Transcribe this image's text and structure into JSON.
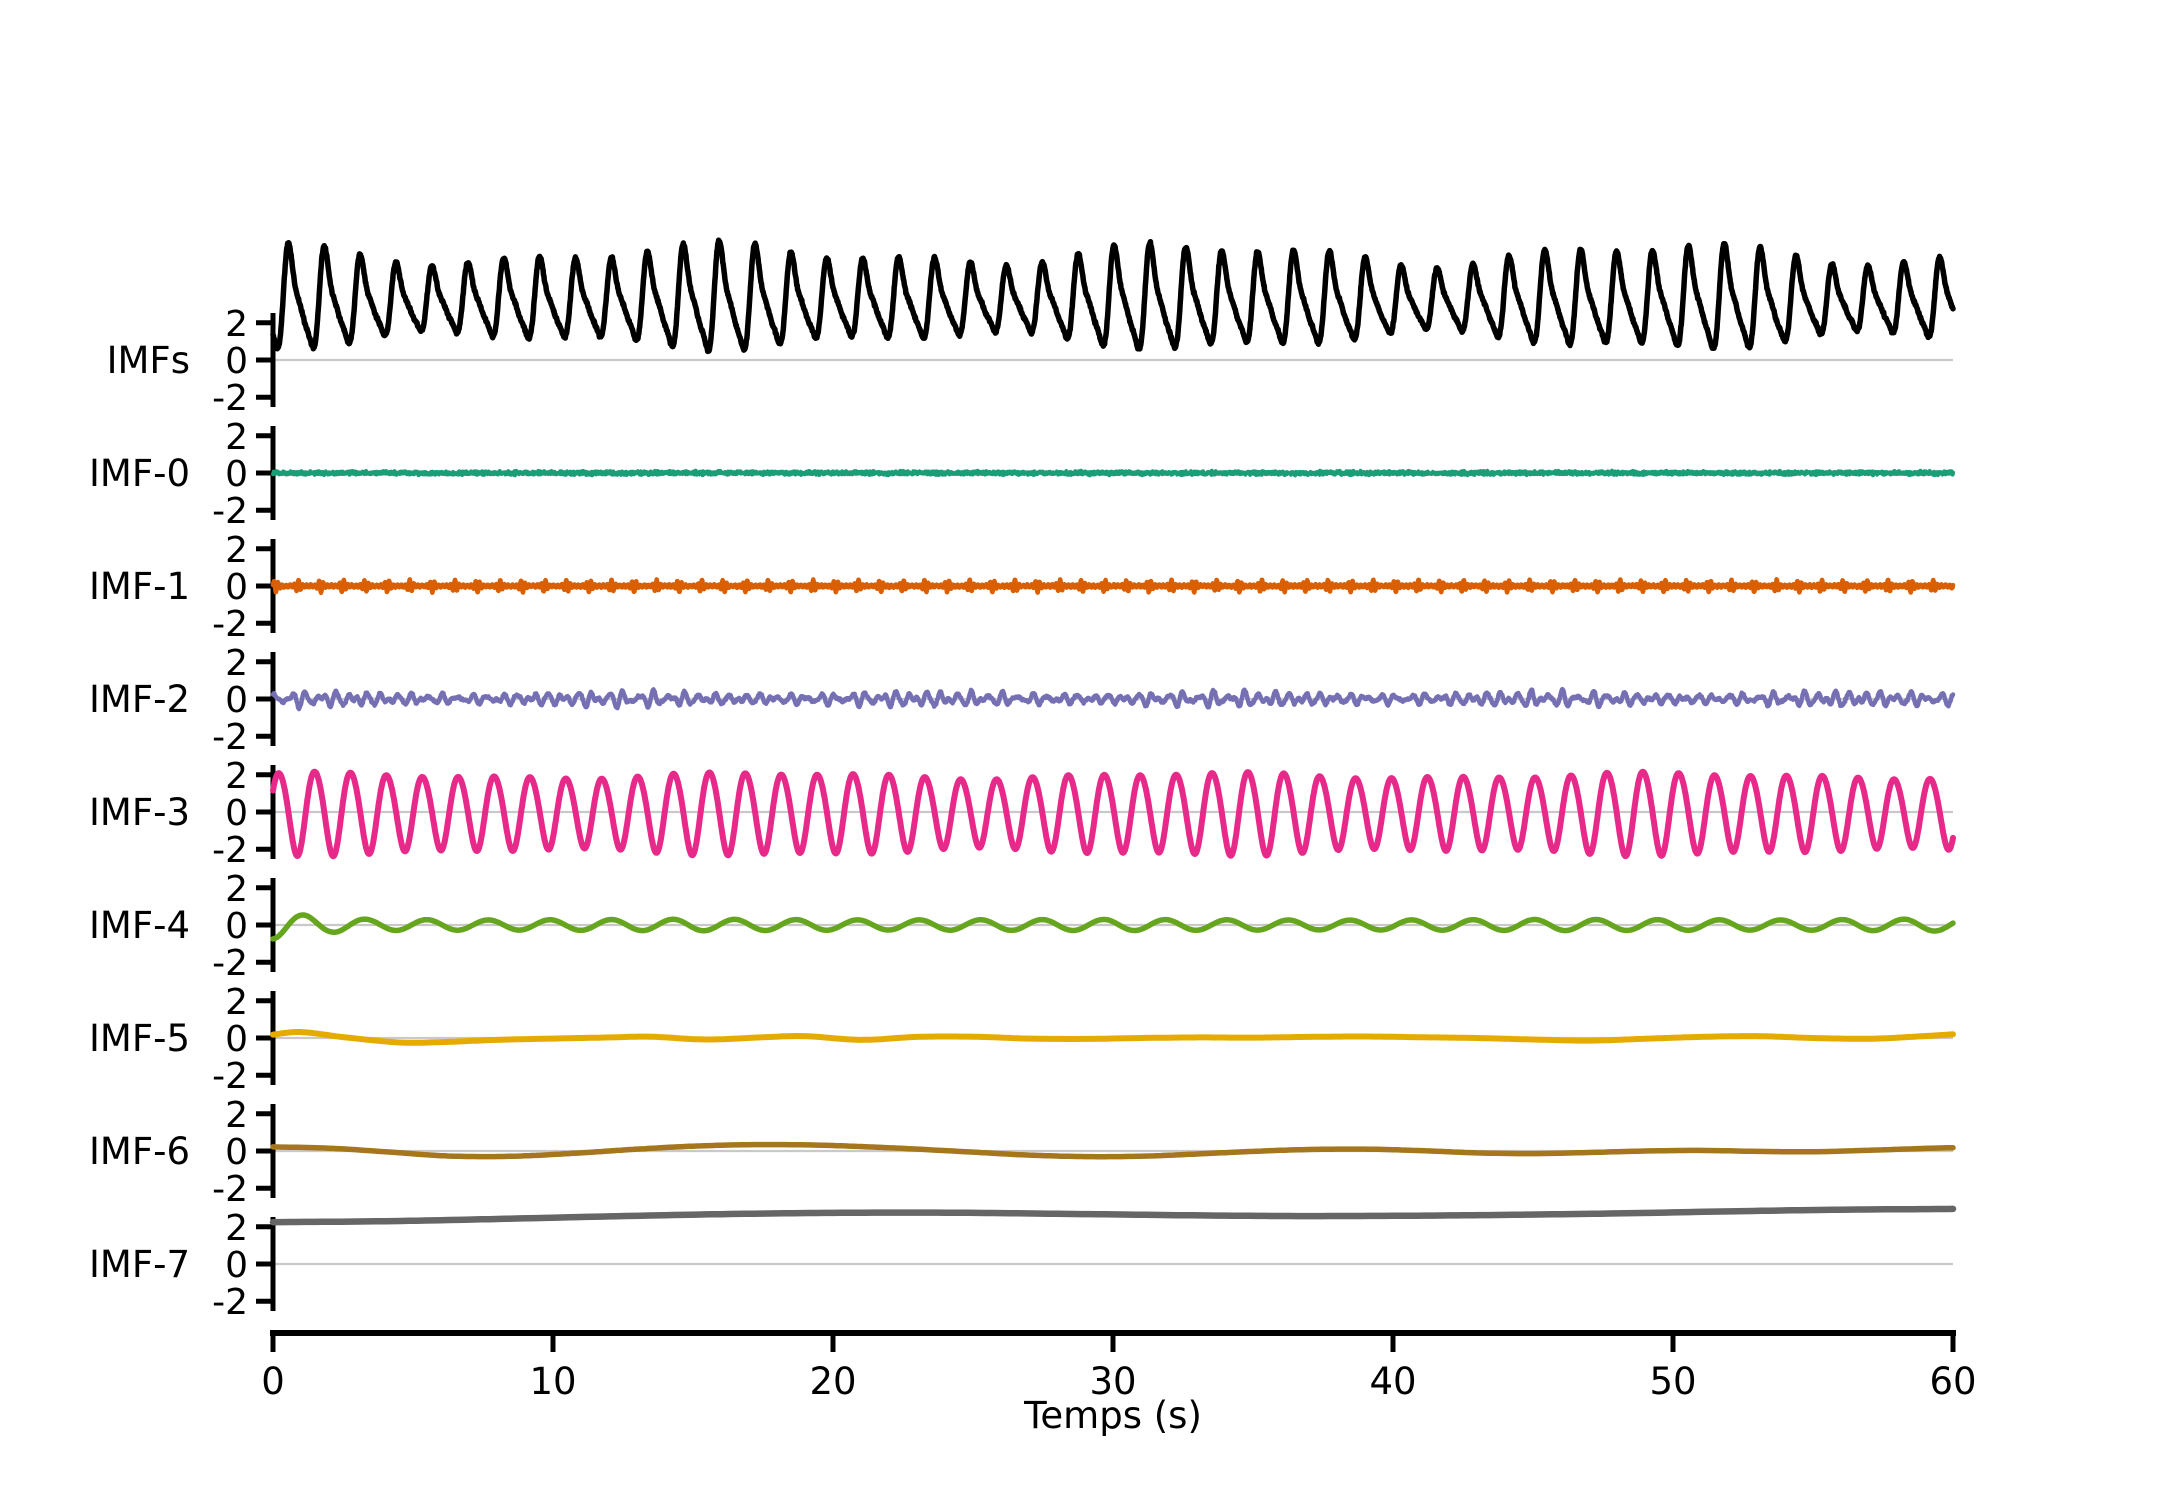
{
  "figure": {
    "background": "#ffffff",
    "axis_color": "#000000",
    "zero_line_color": "#c9c9c9"
  },
  "chart_data": {
    "type": "line",
    "title": "",
    "xlabel": "Temps (s)",
    "x_range": [
      0,
      60
    ],
    "x_ticks": [
      0,
      10,
      20,
      30,
      40,
      50,
      60
    ],
    "x_tick_labels": [
      "0",
      "10",
      "20",
      "30",
      "40",
      "50",
      "60"
    ],
    "y_ticks_per_row": [
      2,
      0,
      -2
    ],
    "y_tick_labels": [
      "2",
      "0",
      "-2"
    ],
    "grid": "zero-line-only",
    "legend": "none",
    "rows": [
      {
        "label": "IMFs",
        "color": "#000000",
        "line_width": 5.5,
        "seed": 11,
        "summary": {
          "mean": 3.1,
          "min": 0.0,
          "max": 6.4,
          "dominant_freq_hz": 0.78
        },
        "synth": {
          "type": "composite",
          "offset": 3.1,
          "components": [
            {
              "f": 0.78,
              "a": 1.0,
              "ph": -1.6
            },
            {
              "f": 1.56,
              "a": 0.4,
              "ph": 2.7
            },
            {
              "f": 2.34,
              "a": 0.12,
              "ph": 0.6
            }
          ],
          "amp_mod": {
            "base": 1.9,
            "terms": [
              {
                "period": 17,
                "a": 0.35,
                "ph": 2.0
              },
              {
                "period": 7.3,
                "a": 0.2,
                "ph": 0.4
              }
            ]
          },
          "noise": 0.04
        }
      },
      {
        "label": "IMF-0",
        "color": "#1b9e77",
        "line_width": 4,
        "seed": 23,
        "summary": {
          "mean": 0.0,
          "band": 0.14,
          "character": "high-frequency noise"
        },
        "synth": {
          "type": "noise",
          "amp": 0.046
        }
      },
      {
        "label": "IMF-1",
        "color": "#d95f02",
        "line_width": 4.5,
        "seed": 37,
        "summary": {
          "mean": 0.0,
          "base_amp": 0.07,
          "burst_amp": 0.34,
          "burst_rate_hz": 1.25
        },
        "synth": {
          "type": "am_bursts",
          "carrier_f": 6.8,
          "carrier_ph": 0.3,
          "base_amp": 0.07,
          "burst_amp": 0.27,
          "burst_f": 1.25,
          "burst_ph": 0.8,
          "exponent": 6,
          "noise": 0.015
        }
      },
      {
        "label": "IMF-2",
        "color": "#7570b3",
        "line_width": 4.5,
        "seed": 51,
        "summary": {
          "mean": 0.0,
          "band": 0.4,
          "dominant_freq_hz": 2.3
        },
        "synth": {
          "type": "mixed",
          "components": [
            {
              "f": 1.85,
              "a": 0.19,
              "ph": 0.4
            },
            {
              "f": 2.65,
              "a": 0.14,
              "ph": 1.5
            },
            {
              "f": 3.6,
              "a": 0.08,
              "ph": 2.6
            }
          ],
          "amp_mod": {
            "base": 1.0,
            "terms": [
              {
                "period": 11,
                "a": 0.25,
                "ph": 0.8
              }
            ]
          },
          "noise": 0.03
        }
      },
      {
        "label": "IMF-3",
        "color": "#e7298a",
        "line_width": 6,
        "seed": 63,
        "summary": {
          "mean": 0.0,
          "amplitude": 2.1,
          "dominant_freq_hz": 0.78
        },
        "synth": {
          "type": "composite",
          "offset": 0,
          "components": [
            {
              "f": 0.78,
              "a": 2.05,
              "ph": 0.5
            },
            {
              "f": 1.56,
              "a": 0.12,
              "ph": 2.0
            }
          ],
          "amp_mod": {
            "base": 1.0,
            "terms": [
              {
                "period": 16,
                "a": 0.07,
                "ph": 1.0
              },
              {
                "period": 6.7,
                "a": 0.04,
                "ph": 0.0
              }
            ]
          },
          "noise": 0
        }
      },
      {
        "label": "IMF-4",
        "color": "#66a61e",
        "line_width": 5.5,
        "seed": 77,
        "summary": {
          "mean": 0.0,
          "amplitude": 0.3,
          "dominant_freq_hz": 0.455,
          "start_transient": -0.75
        },
        "synth": {
          "type": "sine_env",
          "f": 0.455,
          "ph": -1.5708,
          "env_keypoints": [
            [
              0,
              0.75
            ],
            [
              1,
              0.55
            ],
            [
              2,
              0.4
            ],
            [
              3.5,
              0.3
            ],
            [
              8,
              0.27
            ],
            [
              15,
              0.31
            ],
            [
              22,
              0.27
            ],
            [
              30,
              0.3
            ],
            [
              38,
              0.26
            ],
            [
              46,
              0.3
            ],
            [
              54,
              0.27
            ],
            [
              60,
              0.33
            ]
          ]
        }
      },
      {
        "label": "IMF-5",
        "color": "#e6ab02",
        "line_width": 6,
        "seed": 91,
        "summary": {
          "mean": 0.0,
          "amplitude": 0.25,
          "character": "slow drift"
        },
        "synth": {
          "type": "keypoints",
          "points": [
            [
              0,
              0.18
            ],
            [
              1,
              0.32
            ],
            [
              2.5,
              0.05
            ],
            [
              4.5,
              -0.24
            ],
            [
              6,
              -0.22
            ],
            [
              8,
              -0.1
            ],
            [
              10,
              -0.03
            ],
            [
              12,
              0.03
            ],
            [
              13.5,
              0.07
            ],
            [
              15.5,
              -0.08
            ],
            [
              17.5,
              0.04
            ],
            [
              19,
              0.1
            ],
            [
              21,
              -0.1
            ],
            [
              23,
              0.06
            ],
            [
              25,
              0.07
            ],
            [
              27,
              -0.03
            ],
            [
              29,
              -0.05
            ],
            [
              31,
              0.0
            ],
            [
              33,
              0.03
            ],
            [
              35,
              0.02
            ],
            [
              37,
              0.06
            ],
            [
              39,
              0.08
            ],
            [
              41,
              0.04
            ],
            [
              43,
              0.0
            ],
            [
              45,
              -0.08
            ],
            [
              47,
              -0.14
            ],
            [
              49,
              -0.04
            ],
            [
              51,
              0.06
            ],
            [
              53,
              0.1
            ],
            [
              55,
              0.0
            ],
            [
              57,
              -0.04
            ],
            [
              58.5,
              0.06
            ],
            [
              60,
              0.2
            ]
          ]
        }
      },
      {
        "label": "IMF-6",
        "color": "#a6761d",
        "line_width": 5.5,
        "seed": 13,
        "summary": {
          "mean": 0.0,
          "amplitude": 0.33,
          "period_s": 21
        },
        "synth": {
          "type": "keypoints",
          "points": [
            [
              0,
              0.22
            ],
            [
              2,
              0.15
            ],
            [
              4,
              -0.04
            ],
            [
              6,
              -0.25
            ],
            [
              7.5,
              -0.3
            ],
            [
              9,
              -0.26
            ],
            [
              11,
              -0.1
            ],
            [
              13,
              0.1
            ],
            [
              15,
              0.26
            ],
            [
              17,
              0.34
            ],
            [
              19,
              0.33
            ],
            [
              21,
              0.24
            ],
            [
              23,
              0.1
            ],
            [
              25,
              -0.06
            ],
            [
              27,
              -0.22
            ],
            [
              29,
              -0.3
            ],
            [
              31,
              -0.28
            ],
            [
              33,
              -0.16
            ],
            [
              35,
              -0.02
            ],
            [
              37,
              0.08
            ],
            [
              39,
              0.1
            ],
            [
              41,
              0.02
            ],
            [
              43,
              -0.1
            ],
            [
              45,
              -0.14
            ],
            [
              47,
              -0.08
            ],
            [
              49,
              0.0
            ],
            [
              51,
              0.03
            ],
            [
              53,
              -0.02
            ],
            [
              55,
              -0.04
            ],
            [
              57,
              0.04
            ],
            [
              59,
              0.14
            ],
            [
              60,
              0.18
            ]
          ]
        }
      },
      {
        "label": "IMF-7",
        "color": "#666666",
        "line_width": 6.5,
        "seed": 5,
        "summary": {
          "start": 2.25,
          "peak": 2.76,
          "dip": 2.58,
          "end": 2.96,
          "character": "residual trend"
        },
        "synth": {
          "type": "keypoints",
          "points": [
            [
              0,
              2.25
            ],
            [
              4,
              2.3
            ],
            [
              8,
              2.42
            ],
            [
              12,
              2.56
            ],
            [
              16,
              2.68
            ],
            [
              20,
              2.75
            ],
            [
              24,
              2.76
            ],
            [
              28,
              2.7
            ],
            [
              32,
              2.63
            ],
            [
              36,
              2.58
            ],
            [
              40,
              2.59
            ],
            [
              44,
              2.64
            ],
            [
              48,
              2.72
            ],
            [
              52,
              2.83
            ],
            [
              56,
              2.92
            ],
            [
              60,
              2.96
            ]
          ]
        }
      }
    ]
  }
}
